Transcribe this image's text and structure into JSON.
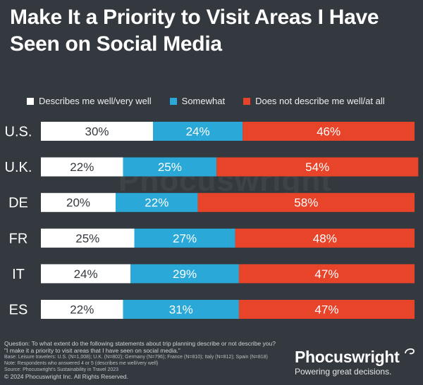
{
  "title": "Make It a Priority to Visit Areas I Have Seen on Social Media",
  "watermark": "Phocuswright",
  "chart_data": {
    "type": "bar",
    "orientation": "horizontal",
    "stacked": true,
    "categories": [
      "U.S.",
      "U.K.",
      "DE",
      "FR",
      "IT",
      "ES"
    ],
    "series": [
      {
        "name": "Describes me well/very well",
        "color": "#ffffff",
        "label_color": "#33393e",
        "values": [
          30,
          22,
          20,
          25,
          24,
          22
        ]
      },
      {
        "name": "Somewhat",
        "color": "#2aa8d8",
        "label_color": "#ffffff",
        "values": [
          24,
          25,
          22,
          27,
          29,
          31
        ]
      },
      {
        "name": "Does not describe me well/at all",
        "color": "#e8442a",
        "label_color": "#ffffff",
        "values": [
          46,
          54,
          58,
          48,
          47,
          47
        ]
      }
    ],
    "value_suffix": "%",
    "xlim": [
      0,
      100
    ],
    "legend_position": "top"
  },
  "footer": {
    "question": "Question: To what extent do the following statements about trip planning describe or not describe you?",
    "statement": "\"I make it a priority to visit areas that I have seen on social media.\"",
    "base": "Base: Leisure travelers: U.S. (N=1,008); U.K. (N=802); Germany (N=796); France (N=810); Italy (N=812); Spain (N=818)",
    "note": "Note: Respondents who answered 4 or 5 (describes me well/very well)",
    "source": "Source: Phocuswright's Sustainability in Travel 2023",
    "copyright": "© 2024 Phocuswright Inc. All Rights Reserved."
  },
  "brand": {
    "name": "Phocuswright",
    "tagline": "Powering great decisions."
  }
}
